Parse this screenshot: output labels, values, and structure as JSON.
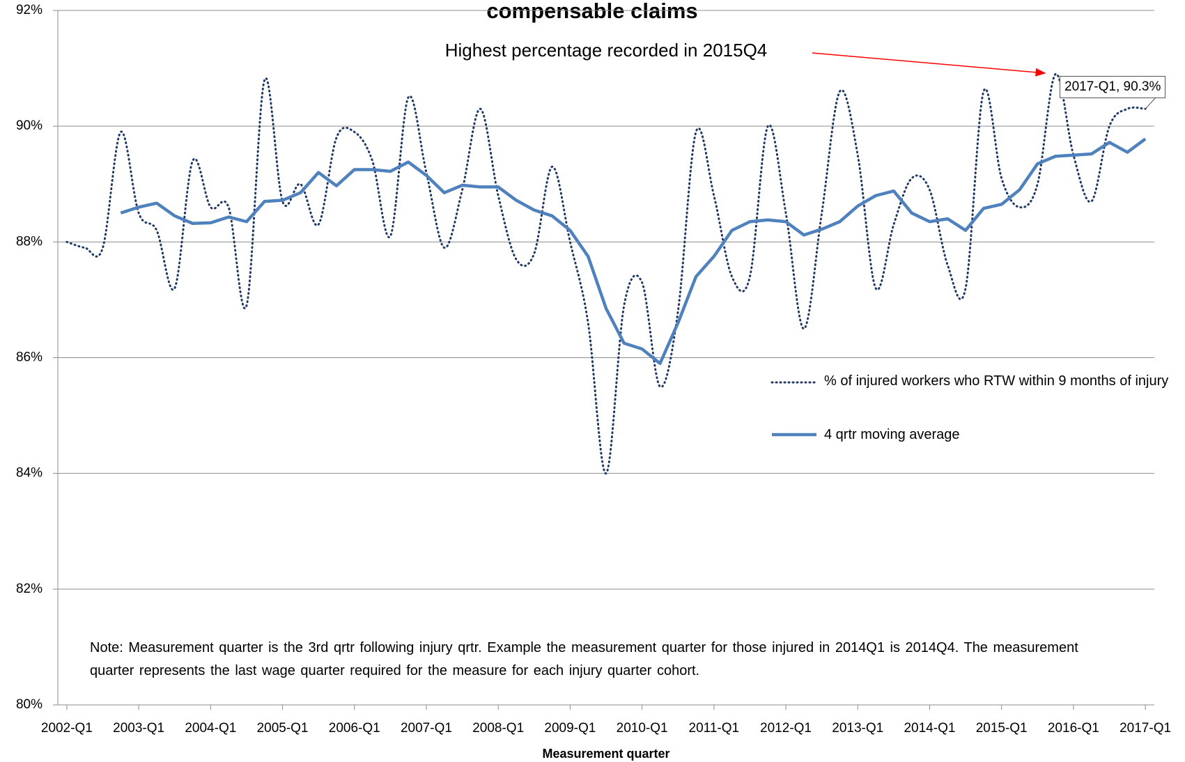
{
  "chart_data": {
    "type": "line",
    "title": "compensable claims",
    "xlabel": "Measurement quarter",
    "categories": [
      "2002-Q1",
      null,
      null,
      null,
      "2003-Q1",
      null,
      null,
      null,
      "2004-Q1",
      null,
      null,
      null,
      "2005-Q1",
      null,
      null,
      null,
      "2006-Q1",
      null,
      null,
      null,
      "2007-Q1",
      null,
      null,
      null,
      "2008-Q1",
      null,
      null,
      null,
      "2009-Q1",
      null,
      null,
      null,
      "2010-Q1",
      null,
      null,
      null,
      "2011-Q1",
      null,
      null,
      null,
      "2012-Q1",
      null,
      null,
      null,
      "2013-Q1",
      null,
      null,
      null,
      "2014-Q1",
      null,
      null,
      null,
      "2015-Q1",
      null,
      null,
      null,
      "2016-Q1",
      null,
      null,
      null,
      "2017-Q1"
    ],
    "series": [
      {
        "name": "% of injured workers who RTW within 9 months of injury",
        "color": "#1f3864",
        "style": "dotted",
        "values": [
          88.0,
          87.9,
          87.9,
          89.9,
          88.5,
          88.2,
          87.2,
          89.4,
          88.6,
          88.6,
          86.9,
          90.8,
          88.7,
          89.0,
          88.3,
          89.8,
          89.9,
          89.4,
          88.1,
          90.5,
          89.2,
          87.9,
          88.9,
          90.3,
          88.8,
          87.7,
          87.8,
          89.3,
          88.0,
          86.6,
          84.0,
          86.9,
          87.3,
          85.5,
          86.8,
          89.9,
          88.8,
          87.4,
          87.4,
          90.0,
          88.5,
          86.5,
          88.5,
          90.6,
          89.5,
          87.2,
          88.3,
          89.1,
          88.9,
          87.6,
          87.2,
          90.6,
          89.1,
          88.6,
          89.0,
          90.9,
          89.5,
          88.7,
          90.0,
          90.3,
          90.3
        ]
      },
      {
        "name": "4 qrtr moving average",
        "color": "#4f81bd",
        "style": "solid",
        "values": [
          null,
          null,
          null,
          88.5,
          88.6,
          88.67,
          88.45,
          88.32,
          88.33,
          88.43,
          88.35,
          88.7,
          88.72,
          88.85,
          89.2,
          88.97,
          89.25,
          89.25,
          89.22,
          89.38,
          89.15,
          88.85,
          88.98,
          88.95,
          88.95,
          88.72,
          88.55,
          88.45,
          88.2,
          87.75,
          86.85,
          86.25,
          86.15,
          85.9,
          86.6,
          87.4,
          87.75,
          88.2,
          88.35,
          88.38,
          88.35,
          88.12,
          88.22,
          88.35,
          88.62,
          88.8,
          88.88,
          88.5,
          88.35,
          88.4,
          88.2,
          88.58,
          88.65,
          88.9,
          89.35,
          89.48,
          89.5,
          89.52,
          89.72,
          89.55,
          89.78
        ]
      }
    ],
    "ylim": [
      80,
      92
    ],
    "yticks": [
      {
        "value": 80,
        "label": "80%"
      },
      {
        "value": 82,
        "label": "82%"
      },
      {
        "value": 84,
        "label": "84%"
      },
      {
        "value": 86,
        "label": "86%"
      },
      {
        "value": 88,
        "label": "88%"
      },
      {
        "value": 90,
        "label": "90%"
      },
      {
        "value": 92,
        "label": "92%"
      }
    ],
    "grid": true,
    "legend": "right",
    "annotations": [
      {
        "text": "Highest percentage recorded in 2015Q4",
        "color": "#ff0000"
      }
    ],
    "point_label": "2017-Q1, 90.3%",
    "note": "Note: Measurement quarter is the 3rd qrtr following injury qrtr. Example the measurement quarter for those injured in 2014Q1 is 2014Q4. The measurement quarter represents the last wage quarter required for the measure for each injury quarter cohort."
  }
}
